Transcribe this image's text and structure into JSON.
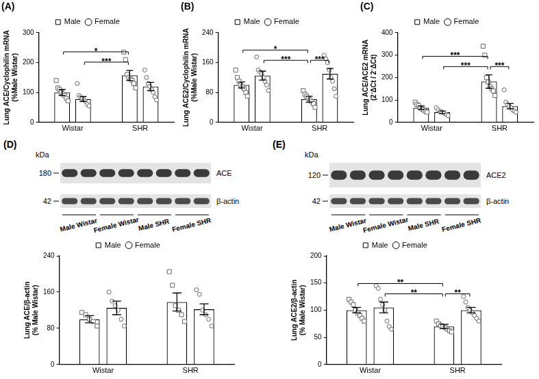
{
  "chart_data": [
    {
      "type": "bar",
      "title": "(A)",
      "ylabel": [
        "Lung ACE/Cyclophilin mRNA",
        "(%Male Wistar)"
      ],
      "categories": [
        "Wistar",
        "SHR"
      ],
      "ylim": [
        0,
        300
      ],
      "yticks": [
        0,
        100,
        200,
        300
      ],
      "grid": false,
      "legend": "top",
      "series": [
        {
          "name": "Male",
          "color": "#ffffff",
          "marker": "square",
          "values": [
            100,
            157
          ],
          "errors": [
            10,
            17
          ],
          "points": [
            [
              140,
              115,
              110,
              100,
              95,
              90,
              80,
              72
            ],
            [
              235,
              210,
              160,
              150,
              145,
              140,
              130,
              115
            ]
          ]
        },
        {
          "name": "Female",
          "color": "#ffffff",
          "marker": "circle",
          "values": [
            78,
            120
          ],
          "errors": [
            8,
            14
          ],
          "points": [
            [
              130,
              90,
              85,
              80,
              75,
              70,
              60,
              55
            ],
            [
              175,
              150,
              130,
              120,
              110,
              100,
              85,
              75
            ]
          ]
        }
      ],
      "annotations": [
        {
          "label": "***",
          "between": [
            [
              "Wistar",
              "Female"
            ],
            [
              "SHR",
              "Male"
            ]
          ]
        },
        {
          "label": "*",
          "between": [
            [
              "Wistar",
              "Male"
            ],
            [
              "SHR",
              "Male"
            ]
          ]
        }
      ]
    },
    {
      "type": "bar",
      "title": "(B)",
      "ylabel": [
        "Lung ACE2/Cyclophilin mRNA",
        "(%Male Wistar)"
      ],
      "categories": [
        "Wistar",
        "SHR"
      ],
      "ylim": [
        0,
        240
      ],
      "yticks": [
        0,
        80,
        160,
        240
      ],
      "grid": false,
      "legend": "top",
      "series": [
        {
          "name": "Male",
          "color": "#ffffff",
          "marker": "square",
          "values": [
            100,
            62
          ],
          "errors": [
            8,
            8
          ],
          "points": [
            [
              140,
              120,
              110,
              100,
              95,
              90,
              80,
              70
            ],
            [
              85,
              75,
              70,
              65,
              60,
              55,
              50,
              40
            ]
          ]
        },
        {
          "name": "Female",
          "color": "#ffffff",
          "marker": "circle",
          "values": [
            125,
            130
          ],
          "errors": [
            12,
            14
          ],
          "points": [
            [
              175,
              140,
              135,
              130,
              120,
              110,
              100,
              85
            ],
            [
              180,
              170,
              160,
              140,
              120,
              110,
              90,
              70
            ]
          ]
        }
      ],
      "annotations": [
        {
          "label": "***",
          "between": [
            [
              "Wistar",
              "Female"
            ],
            [
              "SHR",
              "Male"
            ]
          ]
        },
        {
          "label": "***",
          "between": [
            [
              "SHR",
              "Male"
            ],
            [
              "SHR",
              "Female"
            ]
          ]
        },
        {
          "label": "*",
          "between": [
            [
              "Wistar",
              "Male"
            ],
            [
              "SHR",
              "Male"
            ]
          ]
        }
      ]
    },
    {
      "type": "bar",
      "title": "(C)",
      "ylabel": [
        "Lung ACE/ACE2 mRNA",
        "(2⁻ΔCt / 2⁻ΔCt)"
      ],
      "categories": [
        "Wistar",
        "SHR"
      ],
      "ylim": [
        0,
        400
      ],
      "yticks": [
        0,
        100,
        200,
        300,
        400
      ],
      "grid": false,
      "legend": "top",
      "series": [
        {
          "name": "Male",
          "color": "#ffffff",
          "marker": "square",
          "values": [
            65,
            182
          ],
          "errors": [
            8,
            30
          ],
          "points": [
            [
              90,
              80,
              75,
              65,
              60,
              55,
              50,
              45
            ],
            [
              340,
              300,
              200,
              180,
              160,
              150,
              140,
              120
            ]
          ]
        },
        {
          "name": "Female",
          "color": "#ffffff",
          "marker": "circle",
          "values": [
            45,
            72
          ],
          "errors": [
            6,
            12
          ],
          "points": [
            [
              65,
              55,
              50,
              45,
              40,
              35,
              30
            ],
            [
              145,
              90,
              80,
              70,
              65,
              55,
              50,
              45
            ]
          ]
        }
      ],
      "annotations": [
        {
          "label": "***",
          "between": [
            [
              "Wistar",
              "Female"
            ],
            [
              "SHR",
              "Male"
            ]
          ]
        },
        {
          "label": "***",
          "between": [
            [
              "SHR",
              "Male"
            ],
            [
              "SHR",
              "Female"
            ]
          ]
        },
        {
          "label": "***",
          "between": [
            [
              "Wistar",
              "Male"
            ],
            [
              "SHR",
              "Male"
            ]
          ]
        }
      ]
    },
    {
      "type": "bar",
      "ylabel": [
        "Lung ACE/β-actin",
        "(% Male Wistar)"
      ],
      "categories": [
        "Wistar",
        "SHR"
      ],
      "ylim": [
        0,
        240
      ],
      "yticks": [
        0,
        80,
        160,
        240
      ],
      "grid": false,
      "legend": "top",
      "series": [
        {
          "name": "Male",
          "color": "#ffffff",
          "marker": "square",
          "values": [
            100,
            138
          ],
          "errors": [
            8,
            20
          ],
          "points": [
            [
              115,
              110,
              100,
              95,
              85
            ],
            [
              205,
              175,
              130,
              120,
              110,
              95
            ]
          ]
        },
        {
          "name": "Female",
          "color": "#ffffff",
          "marker": "circle",
          "values": [
            125,
            122
          ],
          "errors": [
            15,
            12
          ],
          "points": [
            [
              160,
              140,
              130,
              120,
              100,
              85
            ],
            [
              165,
              155,
              120,
              110,
              100,
              85
            ]
          ]
        }
      ],
      "annotations": []
    },
    {
      "type": "bar",
      "ylabel": [
        "Lung ACE2/β-actin",
        "(% Male Wistar)"
      ],
      "categories": [
        "Wistar",
        "SHR"
      ],
      "ylim": [
        0,
        200
      ],
      "yticks": [
        0,
        50,
        100,
        150,
        200
      ],
      "grid": false,
      "legend": "top",
      "series": [
        {
          "name": "Male",
          "color": "#ffffff",
          "marker": "square",
          "values": [
            100,
            70
          ],
          "errors": [
            5,
            4
          ],
          "points": [
            [
              120,
              115,
              110,
              100,
              95,
              90,
              85,
              80
            ],
            [
              80,
              75,
              72,
              70,
              68,
              65,
              62,
              60
            ]
          ]
        },
        {
          "name": "Female",
          "color": "#ffffff",
          "marker": "circle",
          "values": [
            105,
            100
          ],
          "errors": [
            10,
            5
          ],
          "points": [
            [
              145,
              140,
              120,
              110,
              100,
              80,
              70,
              65
            ],
            [
              125,
              115,
              105,
              100,
              95,
              90,
              85,
              80
            ]
          ]
        }
      ],
      "annotations": [
        {
          "label": "**",
          "between": [
            [
              "Wistar",
              "Female"
            ],
            [
              "SHR",
              "Male"
            ]
          ]
        },
        {
          "label": "**",
          "between": [
            [
              "SHR",
              "Male"
            ],
            [
              "SHR",
              "Female"
            ]
          ]
        },
        {
          "label": "**",
          "between": [
            [
              "Wistar",
              "Male"
            ],
            [
              "SHR",
              "Male"
            ]
          ]
        }
      ]
    }
  ],
  "blots": [
    {
      "panel": "(D)",
      "unit": "kDa",
      "rows": [
        {
          "protein": "ACE",
          "marker": 180
        },
        {
          "protein": "β-actin",
          "marker": 42
        }
      ],
      "lanes": [
        "Male Wistar",
        "Female Wistar",
        "Male SHR",
        "Female SHR"
      ]
    },
    {
      "panel": "(E)",
      "unit": "kDa",
      "rows": [
        {
          "protein": "ACE2",
          "marker": 120
        },
        {
          "protein": "β-actin",
          "marker": 42
        }
      ],
      "lanes": [
        "Male Wistar",
        "Female Wistar",
        "Male SHR",
        "Female SHR"
      ]
    }
  ]
}
